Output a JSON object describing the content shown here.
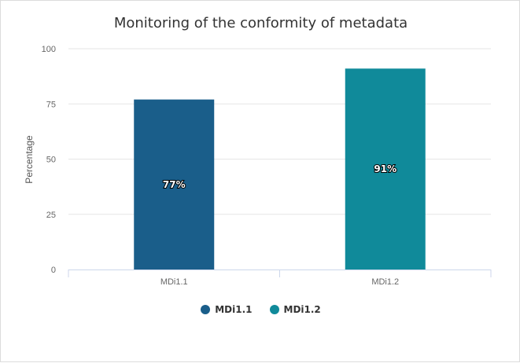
{
  "chart_data": {
    "type": "bar",
    "title": "Monitoring of the conformity of metadata",
    "xlabel": "",
    "ylabel": "Percentage",
    "categories": [
      "MDi1.1",
      "MDi1.2"
    ],
    "values": [
      77,
      91
    ],
    "data_labels": [
      "77%",
      "91%"
    ],
    "colors": [
      "#1a5e8a",
      "#108a9a"
    ],
    "ylim": [
      0,
      100
    ],
    "yticks": [
      0,
      25,
      50,
      75,
      100
    ],
    "grid": true,
    "legend": {
      "placement": "bottom",
      "entries": [
        {
          "name": "MDi1.1",
          "color": "#1a5e8a"
        },
        {
          "name": "MDi1.2",
          "color": "#108a9a"
        }
      ]
    }
  }
}
